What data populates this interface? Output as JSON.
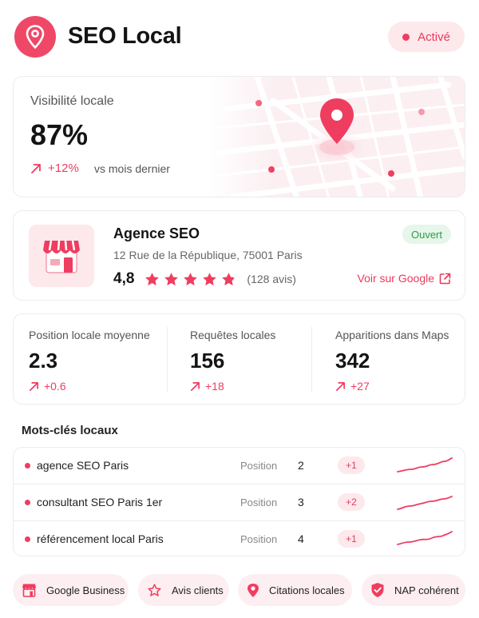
{
  "header": {
    "title": "SEO Local",
    "status_label": "Activé",
    "logo_icon": "map-pin-icon"
  },
  "visibility": {
    "label": "Visibilité locale",
    "value": "87%",
    "delta": "+12%",
    "vs_text": "vs mois dernier"
  },
  "business": {
    "name": "Agence SEO",
    "address": "12 Rue de la République, 75001 Paris",
    "rating": "4,8",
    "rating_fraction": 0.96,
    "reviews": "(128 avis)",
    "open_label": "Ouvert",
    "google_link": "Voir sur Google",
    "icon": "storefront-icon"
  },
  "stats": [
    {
      "label": "Position locale moyenne",
      "value": "2.3",
      "delta": "+0.6"
    },
    {
      "label": "Requêtes locales",
      "value": "156",
      "delta": "+18"
    },
    {
      "label": "Apparitions dans Maps",
      "value": "342",
      "delta": "+27"
    }
  ],
  "keywords": {
    "heading": "Mots-clés locaux",
    "position_label": "Position",
    "rows": [
      {
        "keyword": "agence SEO Paris",
        "position": "2",
        "change": "+1"
      },
      {
        "keyword": "consultant SEO Paris 1er",
        "position": "3",
        "change": "+2"
      },
      {
        "keyword": "référencement local Paris",
        "position": "4",
        "change": "+1"
      }
    ]
  },
  "pills": [
    {
      "label": "Google Business",
      "icon": "storefront-icon"
    },
    {
      "label": "Avis clients",
      "icon": "star-icon"
    },
    {
      "label": "Citations locales",
      "icon": "map-pin-icon"
    },
    {
      "label": "NAP cohérent",
      "icon": "shield-check-icon"
    }
  ],
  "colors": {
    "accent": "#ef3d5f",
    "accent_soft": "#fde8ec",
    "success": "#2f9b4c"
  }
}
